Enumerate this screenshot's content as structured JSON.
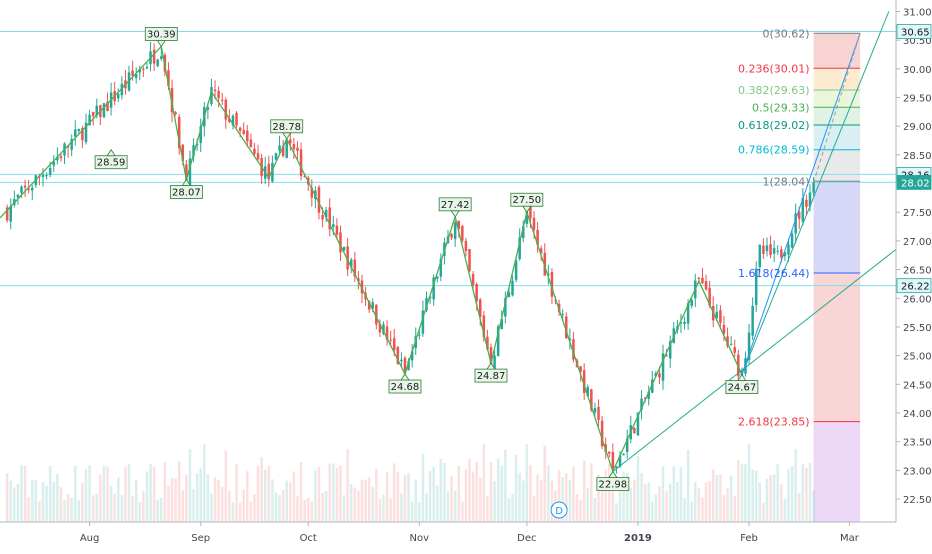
{
  "chart_data": {
    "type": "candlestick",
    "y_axis": {
      "position": "right",
      "ticks": [
        "22.50",
        "23.00",
        "23.50",
        "24.00",
        "24.50",
        "25.00",
        "25.50",
        "26.00",
        "26.50",
        "27.00",
        "27.50",
        "28.00",
        "28.50",
        "29.00",
        "29.50",
        "30.00",
        "30.50",
        "31.00"
      ],
      "range": [
        22.1,
        31.2
      ]
    },
    "x_axis": {
      "ticks": [
        {
          "label": "Aug",
          "day": 20
        },
        {
          "label": "Sep",
          "day": 51
        },
        {
          "label": "Oct",
          "day": 81
        },
        {
          "label": "Nov",
          "day": 112
        },
        {
          "label": "Dec",
          "day": 142
        },
        {
          "label": "2019",
          "day": 173
        },
        {
          "label": "Feb",
          "day": 204
        },
        {
          "label": "Mar",
          "day": 232
        }
      ],
      "range": [
        -5,
        245
      ]
    },
    "price_tags": [
      {
        "value": 30.65,
        "label": "30.65",
        "style": "outline"
      },
      {
        "value": 28.16,
        "label": "28.16",
        "style": "outline"
      },
      {
        "value": 28.02,
        "label": "28.02",
        "style": "filled"
      },
      {
        "value": 26.22,
        "label": "26.22",
        "style": "outline"
      }
    ],
    "horizontal_lines": [
      30.65,
      28.16,
      28.02,
      26.22
    ],
    "zigzag": [
      {
        "day": -5,
        "value": 27.4,
        "label": ""
      },
      {
        "day": 40,
        "value": 30.39,
        "label": "30.39",
        "side": "above"
      },
      {
        "day": 47,
        "value": 28.07,
        "label": "28.07",
        "side": "below"
      },
      {
        "day": 54,
        "value": 29.6,
        "label": "",
        "side": "above"
      },
      {
        "day": 70,
        "value": 28.1,
        "label": "",
        "side": "below"
      },
      {
        "day": 75,
        "value": 28.78,
        "label": "28.78",
        "side": "above"
      },
      {
        "day": 108,
        "value": 24.68,
        "label": "24.68",
        "side": "below"
      },
      {
        "day": 122,
        "value": 27.42,
        "label": "27.42",
        "side": "above"
      },
      {
        "day": 132,
        "value": 24.87,
        "label": "24.87",
        "side": "below"
      },
      {
        "day": 142,
        "value": 27.5,
        "label": "27.50",
        "side": "above"
      },
      {
        "day": 166,
        "value": 22.98,
        "label": "22.98",
        "side": "below"
      },
      {
        "day": 190,
        "value": 26.3,
        "label": "",
        "side": "above"
      },
      {
        "day": 202,
        "value": 24.67,
        "label": "24.67",
        "side": "below"
      }
    ],
    "extra_labels": [
      {
        "day": 26,
        "value": 28.59,
        "label": "28.59",
        "side": "below"
      }
    ],
    "fibonacci": {
      "x_start_day": 222,
      "x_end_day": 235,
      "levels": [
        {
          "ratio": "0",
          "value": 30.62,
          "label": "0(30.62)",
          "color": "#787b86",
          "fill": "#f4c4c4"
        },
        {
          "ratio": "0.236",
          "value": 30.01,
          "label": "0.236(30.01)",
          "color": "#f23645",
          "fill": "#fbe3c2"
        },
        {
          "ratio": "0.382",
          "value": 29.63,
          "label": "0.382(29.63)",
          "color": "#81c784",
          "fill": "#e3f3cf"
        },
        {
          "ratio": "0.5",
          "value": 29.33,
          "label": "0.5(29.33)",
          "color": "#4caf50",
          "fill": "#d3efd9"
        },
        {
          "ratio": "0.618",
          "value": 29.02,
          "label": "0.618(29.02)",
          "color": "#089981",
          "fill": "#cdeaf0"
        },
        {
          "ratio": "0.786",
          "value": 28.59,
          "label": "0.786(28.59)",
          "color": "#00bcd4",
          "fill": "#e2e2e2"
        },
        {
          "ratio": "1",
          "value": 28.04,
          "label": "1(28.04)",
          "color": "#787b86",
          "fill": "#c9c9f5"
        },
        {
          "ratio": "1.618",
          "value": 26.44,
          "label": "1.618(26.44)",
          "color": "#2962ff",
          "fill": "#f6c8c8"
        },
        {
          "ratio": "2.618",
          "value": 23.85,
          "label": "2.618(23.85)",
          "color": "#f23645",
          "fill": "#e6c9f4"
        }
      ],
      "bottom": 22.1
    },
    "trend_lines": [
      {
        "from": {
          "day": 166,
          "value": 22.98
        },
        "to": {
          "day": 248,
          "value": 27.0
        },
        "color": "#22ab94"
      },
      {
        "from": {
          "day": 202,
          "value": 24.67
        },
        "to": {
          "day": 243,
          "value": 31.0
        },
        "color": "#22ab94"
      },
      {
        "from": {
          "day": 202,
          "value": 24.67
        },
        "to": {
          "day": 235,
          "value": 30.62
        },
        "color": "#2196f3"
      }
    ],
    "dividend_marker": {
      "day": 151,
      "label": "D"
    },
    "last_price": 28.02,
    "candles": []
  }
}
